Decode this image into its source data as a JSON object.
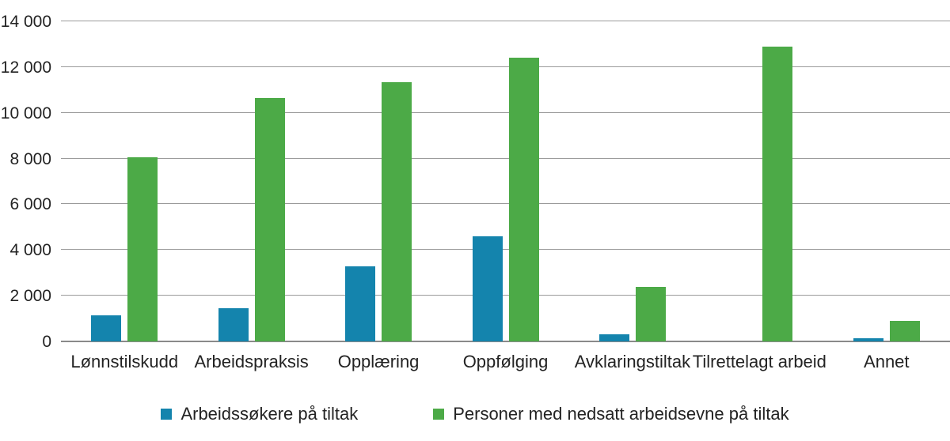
{
  "figure": {
    "background_color": "#ffffff",
    "text_color": "#232323",
    "gridline_color": "#9b9b9b",
    "baseline_color": "#8a8a8a"
  },
  "chart_data": {
    "type": "bar",
    "title": "",
    "xlabel": "",
    "ylabel": "",
    "categories": [
      "Lønnstilskudd",
      "Arbeidspraksis",
      "Opplæring",
      "Oppfølging",
      "Avklaringstiltak",
      "Tilrettelagt arbeid",
      "Annet"
    ],
    "series": [
      {
        "name": "Arbeidssøkere på tiltak",
        "color": "#1484ad",
        "values": [
          1150,
          1450,
          3300,
          4600,
          300,
          0,
          150
        ]
      },
      {
        "name": "Personer med nedsatt arbeidsevne på tiltak",
        "color": "#4caa47",
        "values": [
          8050,
          10650,
          11350,
          12400,
          2400,
          12900,
          890
        ]
      }
    ],
    "ylim": [
      0,
      14000
    ],
    "ytick_values": [
      0,
      2000,
      4000,
      6000,
      8000,
      10000,
      12000,
      14000
    ],
    "ytick_labels": [
      "0",
      "2 000",
      "4 000",
      "6 000",
      "8 000",
      "10 000",
      "12 000",
      "14 000"
    ],
    "grid": "horizontal",
    "legend_position": "bottom"
  }
}
